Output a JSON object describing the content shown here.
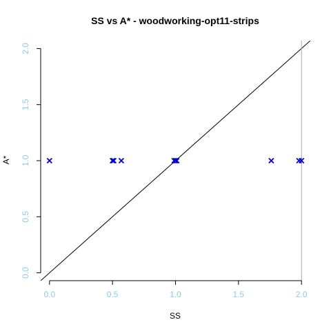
{
  "chart_data": {
    "type": "scatter",
    "title": "SS vs A* - woodworking-opt11-strips",
    "xlabel": "SS",
    "ylabel": "A*",
    "xlim": [
      -0.07,
      2.07
    ],
    "ylim": [
      -0.07,
      2.07
    ],
    "x_ticks": [
      "0.0",
      "0.5",
      "1.0",
      "1.5",
      "2.0"
    ],
    "y_ticks": [
      "0.0",
      "0.5",
      "1.0",
      "1.5",
      "2.0"
    ],
    "grid": false,
    "legend": "none",
    "reference_lines": [
      {
        "kind": "identity",
        "description": "y = x"
      },
      {
        "kind": "vertical",
        "x": 2.0
      }
    ],
    "series": [
      {
        "marker": "x",
        "points": [
          {
            "x": 0.0,
            "y": 1.0
          },
          {
            "x": 0.5,
            "y": 1.0
          },
          {
            "x": 0.51,
            "y": 1.0
          },
          {
            "x": 0.57,
            "y": 1.0
          },
          {
            "x": 0.99,
            "y": 1.0
          },
          {
            "x": 1.0,
            "y": 1.0
          },
          {
            "x": 1.01,
            "y": 1.0
          },
          {
            "x": 1.76,
            "y": 1.0
          },
          {
            "x": 1.98,
            "y": 1.0
          },
          {
            "x": 2.0,
            "y": 1.0
          }
        ]
      }
    ]
  },
  "colors": {
    "marker": "#0000cc",
    "tick_label": "#87ceeb",
    "axis": "#000000",
    "identity_line": "#000000",
    "vertical_line": "#aaaaaa",
    "text": "#000000"
  }
}
